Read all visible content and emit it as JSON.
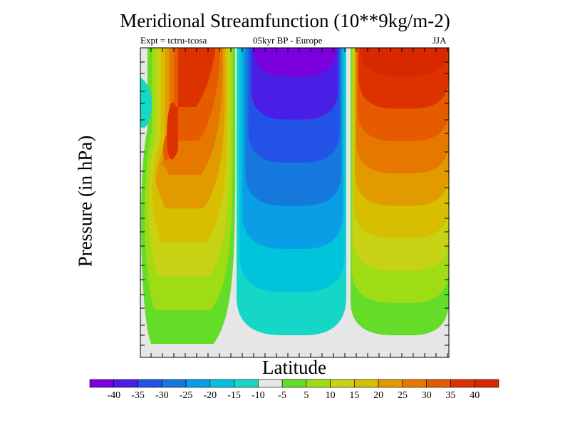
{
  "chart_data": {
    "type": "heatmap",
    "title": "Meridional Streamfunction (10**9kg/m-2)",
    "subtitle_left": "Expt = tctru-tcosa",
    "subtitle_center": "05kyr BP - Europe",
    "subtitle_right": "JJA",
    "xlabel": "Latitude",
    "ylabel": "Pressure (in hPa)",
    "colorbar": {
      "levels": [
        -40,
        -35,
        -30,
        -25,
        -20,
        -15,
        -10,
        -5,
        5,
        10,
        15,
        20,
        25,
        30,
        35,
        40
      ],
      "labels": [
        "-40",
        "-35",
        "-30",
        "-25",
        "-20",
        "-15",
        "-10",
        "-5",
        "5",
        "10",
        "15",
        "20",
        "25",
        "30",
        "35",
        "40"
      ],
      "colors": [
        "#7a00dc",
        "#4b1ee6",
        "#2352e6",
        "#1478dc",
        "#0a9ee6",
        "#00c3dc",
        "#14d7c8",
        "#e6e6e6",
        "#64dc28",
        "#a0dc14",
        "#c8d214",
        "#d7be00",
        "#e19b00",
        "#e67800",
        "#e65a00",
        "#dc3200",
        "#d72800"
      ]
    },
    "regions": [
      {
        "name": "southern-positive-cell",
        "sign": "positive",
        "peak_level": 35
      },
      {
        "name": "central-negative-cell",
        "sign": "negative",
        "peak_level": -40
      },
      {
        "name": "northern-positive-cell",
        "sign": "positive",
        "peak_level": 40
      },
      {
        "name": "western-edge-negative",
        "sign": "negative",
        "peak_level": -10
      }
    ]
  }
}
